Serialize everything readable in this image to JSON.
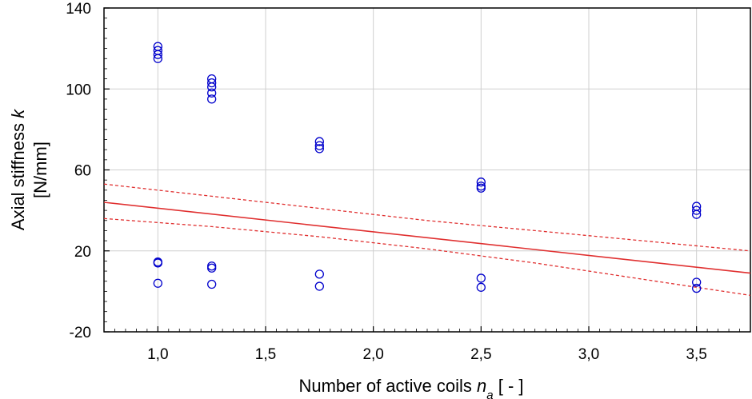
{
  "chart_data": {
    "type": "scatter",
    "xlabel": "Number of active coils ",
    "xlabel_symbol": "n",
    "xlabel_subscript": "a",
    "xlabel_unit": " [ - ]",
    "ylabel_line1": "Axial stiffness ",
    "ylabel_symbol": "k",
    "ylabel_line2": "[N/mm]",
    "xlim": [
      0.75,
      3.75
    ],
    "ylim": [
      -20,
      140
    ],
    "x_ticks": [
      1.0,
      1.5,
      2.0,
      2.5,
      3.0,
      3.5
    ],
    "x_tick_labels": [
      "1,0",
      "1,5",
      "2,0",
      "2,5",
      "3,0",
      "3,5"
    ],
    "y_ticks": [
      -20,
      20,
      60,
      100,
      140
    ],
    "y_tick_labels": [
      "-20",
      "20",
      "60",
      "100",
      "140"
    ],
    "grid": true,
    "series": [
      {
        "kind": "points",
        "color": "#0000cc",
        "points": [
          [
            1.0,
            121
          ],
          [
            1.0,
            119
          ],
          [
            1.0,
            117
          ],
          [
            1.0,
            115
          ],
          [
            1.0,
            14.5
          ],
          [
            1.0,
            14
          ],
          [
            1.0,
            4
          ],
          [
            1.25,
            105
          ],
          [
            1.25,
            103
          ],
          [
            1.25,
            101
          ],
          [
            1.25,
            98
          ],
          [
            1.25,
            95
          ],
          [
            1.25,
            12.5
          ],
          [
            1.25,
            11.5
          ],
          [
            1.25,
            3.5
          ],
          [
            1.75,
            74
          ],
          [
            1.75,
            72
          ],
          [
            1.75,
            70.5
          ],
          [
            1.75,
            8.5
          ],
          [
            1.75,
            2.5
          ],
          [
            2.5,
            54
          ],
          [
            2.5,
            52
          ],
          [
            2.5,
            51
          ],
          [
            2.5,
            6.5
          ],
          [
            2.5,
            2
          ],
          [
            3.5,
            42
          ],
          [
            3.5,
            40
          ],
          [
            3.5,
            38
          ],
          [
            3.5,
            4.5
          ],
          [
            3.5,
            1.5
          ]
        ]
      },
      {
        "kind": "fit",
        "color": "#e03030",
        "style": "solid",
        "points": [
          [
            0.75,
            44
          ],
          [
            3.75,
            9
          ]
        ]
      },
      {
        "kind": "confidence-upper",
        "color": "#e03030",
        "style": "dashed",
        "points": [
          [
            0.75,
            53
          ],
          [
            1.25,
            47
          ],
          [
            1.75,
            41
          ],
          [
            2.25,
            35
          ],
          [
            2.75,
            30
          ],
          [
            3.25,
            25
          ],
          [
            3.75,
            20
          ]
        ]
      },
      {
        "kind": "confidence-lower",
        "color": "#e03030",
        "style": "dashed",
        "points": [
          [
            0.75,
            36
          ],
          [
            1.25,
            32
          ],
          [
            1.75,
            27
          ],
          [
            2.25,
            21
          ],
          [
            2.75,
            14
          ],
          [
            3.25,
            6
          ],
          [
            3.75,
            -2
          ]
        ]
      }
    ]
  }
}
